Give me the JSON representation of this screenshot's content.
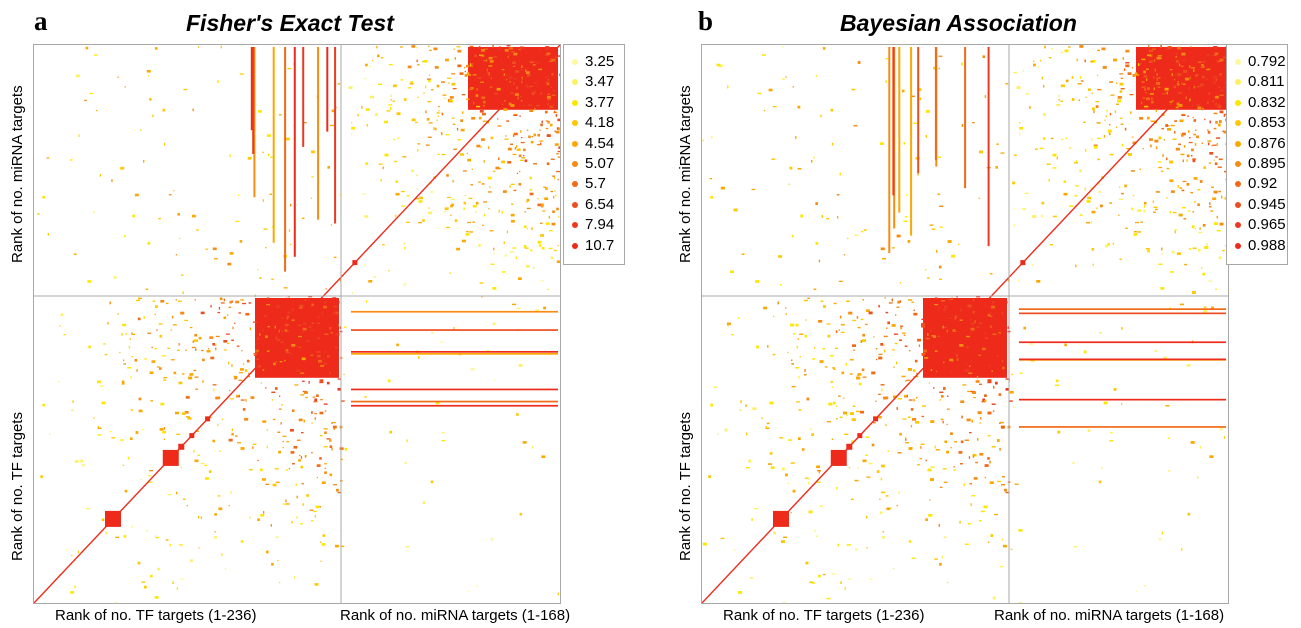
{
  "chart_data": [
    {
      "type": "heatmap",
      "panel_letter": "a",
      "title": "Fisher's Exact Test",
      "xlabel_left": "Rank of no. TF targets (1-236)",
      "xlabel_right": "Rank of no. miRNA targets (1-168)",
      "ylabel_top": "Rank of no. miRNA targets",
      "ylabel_bottom": "Rank of no. TF targets",
      "tf_count": 236,
      "mirna_count": 168,
      "grid": false,
      "legend_position": "right",
      "legend": [
        {
          "label": "3.25",
          "color": "#fdf8a0"
        },
        {
          "label": "3.47",
          "color": "#fdf15f"
        },
        {
          "label": "3.77",
          "color": "#ffe600"
        },
        {
          "label": "4.18",
          "color": "#ffc800"
        },
        {
          "label": "4.54",
          "color": "#fca800"
        },
        {
          "label": "5.07",
          "color": "#f78c12"
        },
        {
          "label": "5.7",
          "color": "#f16a16"
        },
        {
          "label": "6.54",
          "color": "#ed4e20"
        },
        {
          "label": "7.94",
          "color": "#ec3a20"
        },
        {
          "label": "10.7",
          "color": "#ee2a1a"
        }
      ]
    },
    {
      "type": "heatmap",
      "panel_letter": "b",
      "title": "Bayesian Association",
      "xlabel_left": "Rank of no. TF targets (1-236)",
      "xlabel_right": "Rank of no. miRNA targets (1-168)",
      "ylabel_top": "Rank of no. miRNA targets",
      "ylabel_bottom": "Rank of no. TF targets",
      "tf_count": 236,
      "mirna_count": 168,
      "grid": false,
      "legend_position": "right",
      "legend": [
        {
          "label": "0.792",
          "color": "#fdf8a0"
        },
        {
          "label": "0.811",
          "color": "#fdf15f"
        },
        {
          "label": "0.832",
          "color": "#ffe600"
        },
        {
          "label": "0.853",
          "color": "#ffc800"
        },
        {
          "label": "0.876",
          "color": "#fca800"
        },
        {
          "label": "0.895",
          "color": "#f78c12"
        },
        {
          "label": "0.92",
          "color": "#f16a16"
        },
        {
          "label": "0.945",
          "color": "#ed4e20"
        },
        {
          "label": "0.965",
          "color": "#ec3a20"
        },
        {
          "label": "0.988",
          "color": "#ee2a1a"
        }
      ]
    }
  ]
}
